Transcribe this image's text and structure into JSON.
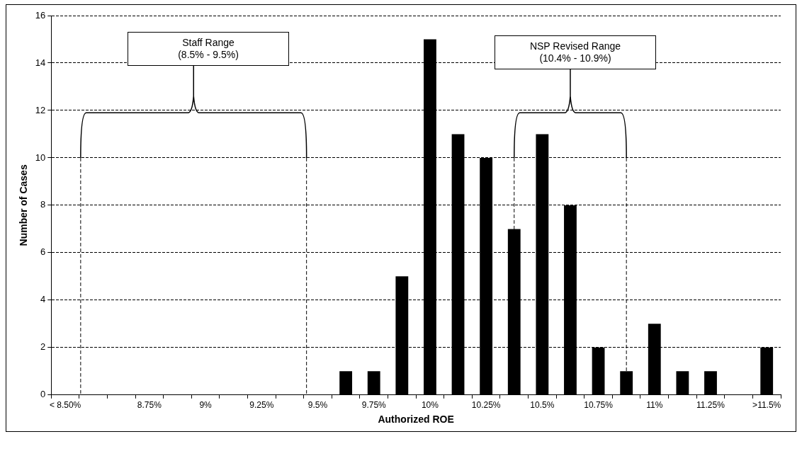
{
  "chart_data": {
    "type": "bar",
    "xlabel": "Authorized ROE",
    "ylabel": "Number of Cases",
    "categories": [
      "< 8.50%",
      null,
      null,
      "8.75%",
      null,
      "9%",
      null,
      "9.25%",
      null,
      "9.5%",
      null,
      "9.75%",
      null,
      "10%",
      null,
      "10.25%",
      null,
      "10.5%",
      null,
      "10.75%",
      null,
      "11%",
      null,
      "11.25%",
      null,
      ">11.5%"
    ],
    "values": [
      0,
      0,
      0,
      0,
      0,
      0,
      0,
      0,
      0,
      0,
      1,
      1,
      5,
      15,
      11,
      10,
      7,
      11,
      8,
      2,
      1,
      3,
      1,
      1,
      0,
      2
    ],
    "color": "#000000",
    "ylim": [
      0,
      16
    ],
    "yticks": [
      0,
      2,
      4,
      6,
      8,
      10,
      12,
      14,
      16
    ],
    "grid": "y",
    "legend": false,
    "annotations": [
      "Staff Range\n(8.5% - 9.5%)",
      "NSP Revised Range\n(10.4% - 10.9%)"
    ]
  }
}
